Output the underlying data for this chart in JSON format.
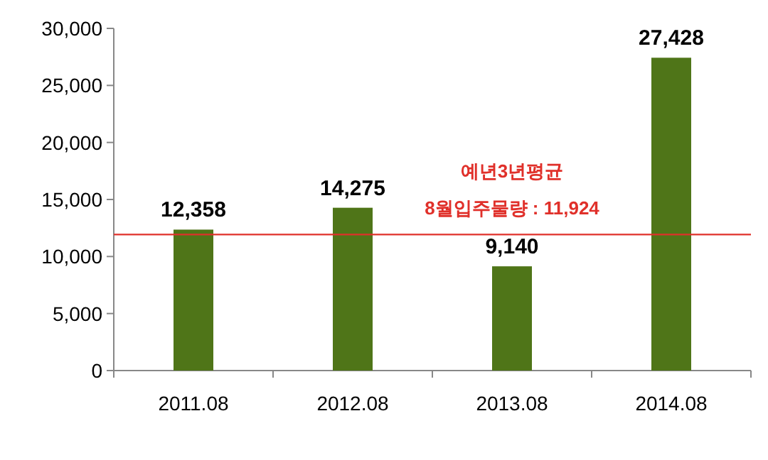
{
  "chart_data": {
    "type": "bar",
    "categories": [
      "2011.08",
      "2012.08",
      "2013.08",
      "2014.08"
    ],
    "values": [
      12358,
      14275,
      9140,
      27428
    ],
    "color": "#4f7518",
    "value_labels": [
      "12,358",
      "14,275",
      "9,140",
      "27,428"
    ],
    "ylim": [
      0,
      30000
    ],
    "yticks": [
      {
        "value": 0,
        "label": "0"
      },
      {
        "value": 5000,
        "label": "5,000"
      },
      {
        "value": 10000,
        "label": "10,000"
      },
      {
        "value": 15000,
        "label": "15,000"
      },
      {
        "value": 20000,
        "label": "20,000"
      },
      {
        "value": 25000,
        "label": "25,000"
      },
      {
        "value": 30000,
        "label": "30,000"
      }
    ],
    "ref_lines": [
      {
        "axis": "y",
        "value": 11924,
        "label": "예년3년평균\n8월입주물량 : 11,924",
        "color": "#e0302a"
      }
    ]
  }
}
